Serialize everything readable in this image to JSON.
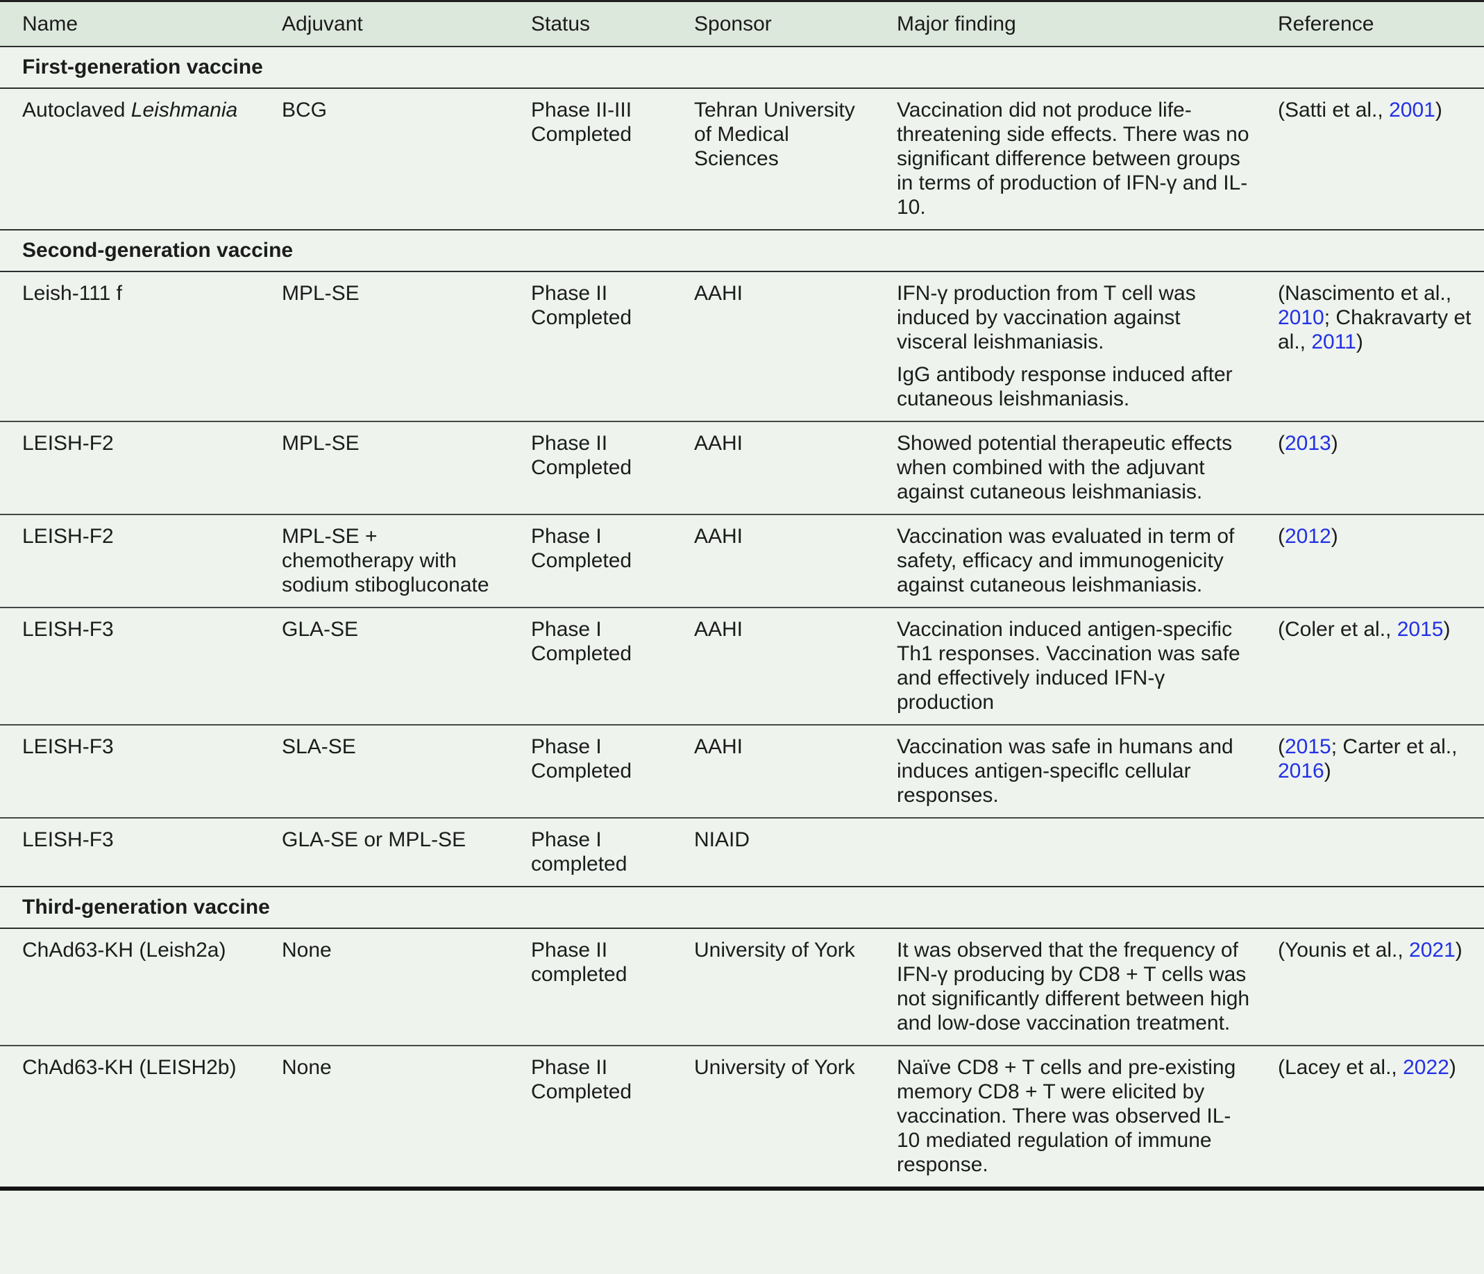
{
  "colors": {
    "header_bg": "#dde8dd",
    "body_bg": "#eef3ee",
    "link": "#2330e4"
  },
  "table": {
    "columns": [
      "Name",
      "Adjuvant",
      "Status",
      "Sponsor",
      "Major finding",
      "Reference"
    ],
    "rows": [
      {
        "type": "section",
        "label": "First-generation vaccine"
      },
      {
        "type": "data",
        "name_prefix": "Autoclaved ",
        "name_italic": "Leishmania",
        "adjuvant": "BCG",
        "status": "Phase II-III Completed",
        "sponsor": "Tehran University of Medical Sciences",
        "findings": [
          "Vaccination did not produce life-threatening side effects. There was no significant difference between groups in terms of production of IFN-γ and IL-10."
        ],
        "reference": [
          {
            "t": "(Satti et al., "
          },
          {
            "t": "2001",
            "link": true
          },
          {
            "t": ")"
          }
        ]
      },
      {
        "type": "section",
        "label": "Second-generation vaccine"
      },
      {
        "type": "data",
        "name_prefix": "Leish-111 f",
        "name_italic": "",
        "adjuvant": "MPL-SE",
        "status": "Phase II Completed",
        "sponsor": "AAHI",
        "findings": [
          "IFN-γ production from T cell was induced by vaccination against visceral leishmaniasis.",
          "IgG antibody response induced after cutaneous leishmaniasis."
        ],
        "reference": [
          {
            "t": "(Nascimento et al., "
          },
          {
            "t": "2010",
            "link": true
          },
          {
            "t": "; Chakravarty et al., "
          },
          {
            "t": "2011",
            "link": true
          },
          {
            "t": ")"
          }
        ]
      },
      {
        "type": "data",
        "name_prefix": "LEISH-F2",
        "name_italic": "",
        "adjuvant": "MPL-SE",
        "status": "Phase II Completed",
        "sponsor": "AAHI",
        "findings": [
          "Showed potential therapeutic effects when combined with the adjuvant against cutaneous leishmaniasis."
        ],
        "reference": [
          {
            "t": "("
          },
          {
            "t": "2013",
            "link": true
          },
          {
            "t": ")"
          }
        ]
      },
      {
        "type": "data",
        "name_prefix": "LEISH-F2",
        "name_italic": "",
        "adjuvant": "MPL-SE + chemotherapy with sodium stibogluconate",
        "status": "Phase I Completed",
        "sponsor": "AAHI",
        "findings": [
          "Vaccination was evaluated in term of safety, efficacy and immunogenicity against cutaneous leishmaniasis."
        ],
        "reference": [
          {
            "t": "("
          },
          {
            "t": "2012",
            "link": true
          },
          {
            "t": ")"
          }
        ]
      },
      {
        "type": "data",
        "name_prefix": "LEISH-F3",
        "name_italic": "",
        "adjuvant": "GLA-SE",
        "status": "Phase I Completed",
        "sponsor": "AAHI",
        "findings": [
          "Vaccination induced antigen-specific Th1 responses. Vaccination was safe and effectively induced IFN-γ production"
        ],
        "reference": [
          {
            "t": "(Coler et al., "
          },
          {
            "t": "2015",
            "link": true
          },
          {
            "t": ")"
          }
        ]
      },
      {
        "type": "data",
        "name_prefix": "LEISH-F3",
        "name_italic": "",
        "adjuvant": "SLA-SE",
        "status": "Phase I Completed",
        "sponsor": "AAHI",
        "findings": [
          "Vaccination was safe in humans and induces antigen-speciflc cellular responses."
        ],
        "reference": [
          {
            "t": "("
          },
          {
            "t": "2015",
            "link": true
          },
          {
            "t": "; Carter et al., "
          },
          {
            "t": "2016",
            "link": true
          },
          {
            "t": ")"
          }
        ]
      },
      {
        "type": "data",
        "name_prefix": "LEISH-F3",
        "name_italic": "",
        "adjuvant": "GLA-SE or MPL-SE",
        "status": "Phase I completed",
        "sponsor": "NIAID",
        "findings": [],
        "reference": []
      },
      {
        "type": "section",
        "label": "Third-generation vaccine"
      },
      {
        "type": "data",
        "name_prefix": "ChAd63-KH (Leish2a)",
        "name_italic": "",
        "adjuvant": "None",
        "status": "Phase II completed",
        "sponsor": "University of York",
        "findings": [
          "It was observed that the frequency of IFN-γ producing by CD8 + T cells was not significantly different between high and low-dose vaccination treatment."
        ],
        "reference": [
          {
            "t": "(Younis et al., "
          },
          {
            "t": "2021",
            "link": true
          },
          {
            "t": ")"
          }
        ]
      },
      {
        "type": "data",
        "name_prefix": "ChAd63-KH (LEISH2b)",
        "name_italic": "",
        "adjuvant": "None",
        "status": "Phase II Completed",
        "sponsor": "University of York",
        "findings": [
          "Naïve CD8 + T cells and pre-existing memory CD8 + T were elicited by vaccination. There was observed IL-10 mediated regulation of immune response."
        ],
        "reference": [
          {
            "t": "(Lacey et al., "
          },
          {
            "t": "2022",
            "link": true
          },
          {
            "t": ")"
          }
        ]
      }
    ]
  }
}
